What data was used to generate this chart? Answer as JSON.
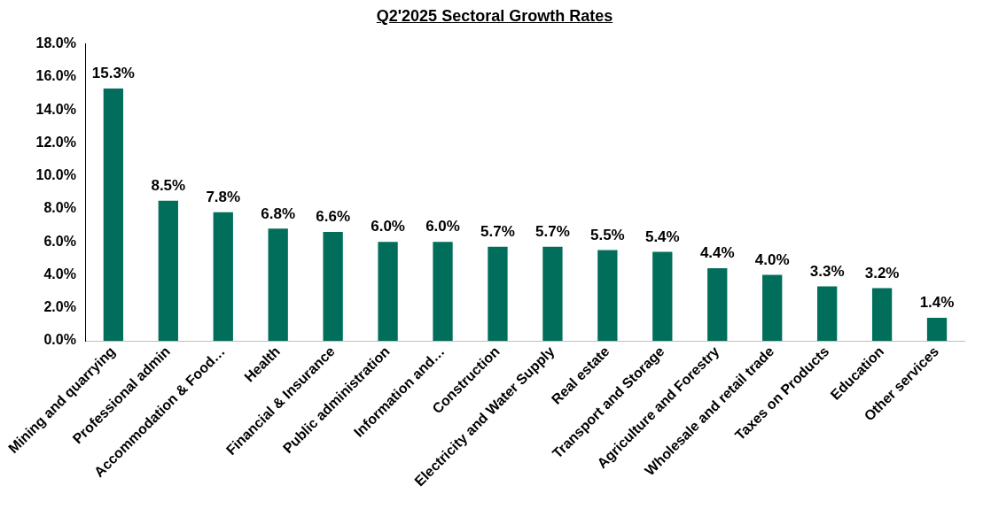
{
  "chart_data": {
    "type": "bar",
    "title": "Q2'2025 Sectoral Growth Rates",
    "categories": [
      "Mining and quarrying",
      "Professional admin",
      "Accommodation & Food…",
      "Health",
      "Financial & Insurance",
      "Public administration",
      "Information and…",
      "Construction",
      "Electricity and Water Supply",
      "Real estate",
      "Transport and Storage",
      "Agriculture and Forestry",
      "Wholesale and retail trade",
      "Taxes on Products",
      "Education",
      "Other services"
    ],
    "values": [
      15.3,
      8.5,
      7.8,
      6.8,
      6.6,
      6.0,
      6.0,
      5.7,
      5.7,
      5.5,
      5.4,
      4.4,
      4.0,
      3.3,
      3.2,
      1.4
    ],
    "value_labels": [
      "15.3%",
      "8.5%",
      "7.8%",
      "6.8%",
      "6.6%",
      "6.0%",
      "6.0%",
      "5.7%",
      "5.7%",
      "5.5%",
      "5.4%",
      "4.4%",
      "4.0%",
      "3.3%",
      "3.2%",
      "1.4%"
    ],
    "color": "#006e5a",
    "ylim": [
      0,
      18
    ],
    "yticks": [
      {
        "value": 0,
        "label": "0.0%"
      },
      {
        "value": 2,
        "label": "2.0%"
      },
      {
        "value": 4,
        "label": "4.0%"
      },
      {
        "value": 6,
        "label": "6.0%"
      },
      {
        "value": 8,
        "label": "8.0%"
      },
      {
        "value": 10,
        "label": "10.0%"
      },
      {
        "value": 12,
        "label": "12.0%"
      },
      {
        "value": 14,
        "label": "14.0%"
      },
      {
        "value": 16,
        "label": "16.0%"
      },
      {
        "value": 18,
        "label": "18.0%"
      }
    ],
    "grid": false,
    "legend": false
  }
}
